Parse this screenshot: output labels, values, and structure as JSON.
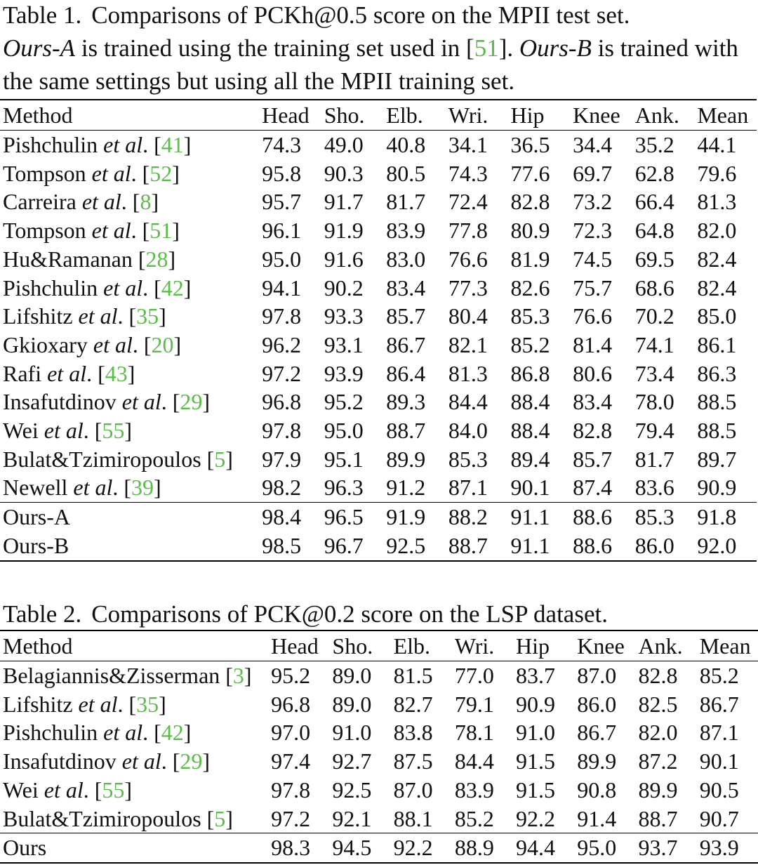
{
  "table1": {
    "caption_label": "Table 1.",
    "caption_parts": {
      "p1": "Comparisons of PCKh@0.5 score on the MPII test set.",
      "ours_a": "Ours-A",
      "p2": " is trained using the training set used in [",
      "ref": "51",
      "p3": "]. ",
      "ours_b": "Ours-B",
      "p4": " is trained with the same settings but using all the MPII training set."
    },
    "headers": [
      "Method",
      "Head",
      "Sho.",
      "Elb.",
      "Wri.",
      "Hip",
      "Knee",
      "Ank.",
      "Mean"
    ],
    "rows": [
      {
        "name": "Pishchulin",
        "etal": true,
        "ref": "41",
        "values": [
          "74.3",
          "49.0",
          "40.8",
          "34.1",
          "36.5",
          "34.4",
          "35.2",
          "44.1"
        ]
      },
      {
        "name": "Tompson",
        "etal": true,
        "ref": "52",
        "values": [
          "95.8",
          "90.3",
          "80.5",
          "74.3",
          "77.6",
          "69.7",
          "62.8",
          "79.6"
        ]
      },
      {
        "name": "Carreira",
        "etal": true,
        "ref": "8",
        "values": [
          "95.7",
          "91.7",
          "81.7",
          "72.4",
          "82.8",
          "73.2",
          "66.4",
          "81.3"
        ]
      },
      {
        "name": "Tompson",
        "etal": true,
        "ref": "51",
        "values": [
          "96.1",
          "91.9",
          "83.9",
          "77.8",
          "80.9",
          "72.3",
          "64.8",
          "82.0"
        ]
      },
      {
        "name": "Hu&Ramanan",
        "etal": false,
        "ref": "28",
        "values": [
          "95.0",
          "91.6",
          "83.0",
          "76.6",
          "81.9",
          "74.5",
          "69.5",
          "82.4"
        ]
      },
      {
        "name": "Pishchulin",
        "etal": true,
        "ref": "42",
        "values": [
          "94.1",
          "90.2",
          "83.4",
          "77.3",
          "82.6",
          "75.7",
          "68.6",
          "82.4"
        ]
      },
      {
        "name": "Lifshitz",
        "etal": true,
        "ref": "35",
        "values": [
          "97.8",
          "93.3",
          "85.7",
          "80.4",
          "85.3",
          "76.6",
          "70.2",
          "85.0"
        ]
      },
      {
        "name": "Gkioxary",
        "etal": true,
        "ref": "20",
        "values": [
          "96.2",
          "93.1",
          "86.7",
          "82.1",
          "85.2",
          "81.4",
          "74.1",
          "86.1"
        ]
      },
      {
        "name": "Rafi",
        "etal": true,
        "ref": "43",
        "values": [
          "97.2",
          "93.9",
          "86.4",
          "81.3",
          "86.8",
          "80.6",
          "73.4",
          "86.3"
        ]
      },
      {
        "name": "Insafutdinov",
        "etal": true,
        "ref": "29",
        "values": [
          "96.8",
          "95.2",
          "89.3",
          "84.4",
          "88.4",
          "83.4",
          "78.0",
          "88.5"
        ]
      },
      {
        "name": "Wei",
        "etal": true,
        "ref": "55",
        "values": [
          "97.8",
          "95.0",
          "88.7",
          "84.0",
          "88.4",
          "82.8",
          "79.4",
          "88.5"
        ]
      },
      {
        "name": "Bulat&Tzimiropoulos",
        "etal": false,
        "ref": "5",
        "values": [
          "97.9",
          "95.1",
          "89.9",
          "85.3",
          "89.4",
          "85.7",
          "81.7",
          "89.7"
        ]
      },
      {
        "name": "Newell",
        "etal": true,
        "ref": "39",
        "values": [
          "98.2",
          "96.3",
          "91.2",
          "87.1",
          "90.1",
          "87.4",
          "83.6",
          "90.9"
        ]
      }
    ],
    "ours_rows": [
      {
        "name": "Ours-A",
        "bold": false,
        "values": [
          "98.4",
          "96.5",
          "91.9",
          "88.2",
          "91.1",
          "88.6",
          "85.3",
          "91.8"
        ]
      },
      {
        "name": "Ours-B",
        "bold": true,
        "values": [
          "98.5",
          "96.7",
          "92.5",
          "88.7",
          "91.1",
          "88.6",
          "86.0",
          "92.0"
        ]
      }
    ]
  },
  "table2": {
    "caption_label": "Table 2.",
    "caption_text": "Comparisons of PCK@0.2 score on the LSP dataset.",
    "headers": [
      "Method",
      "Head",
      "Sho.",
      "Elb.",
      "Wri.",
      "Hip",
      "Knee",
      "Ank.",
      "Mean"
    ],
    "rows": [
      {
        "name": "Belagiannis&Zisserman",
        "etal": false,
        "ref": "3",
        "values": [
          "95.2",
          "89.0",
          "81.5",
          "77.0",
          "83.7",
          "87.0",
          "82.8",
          "85.2"
        ]
      },
      {
        "name": "Lifshitz",
        "etal": true,
        "ref": "35",
        "values": [
          "96.8",
          "89.0",
          "82.7",
          "79.1",
          "90.9",
          "86.0",
          "82.5",
          "86.7"
        ]
      },
      {
        "name": "Pishchulin",
        "etal": true,
        "ref": "42",
        "values": [
          "97.0",
          "91.0",
          "83.8",
          "78.1",
          "91.0",
          "86.7",
          "82.0",
          "87.1"
        ]
      },
      {
        "name": "Insafutdinov",
        "etal": true,
        "ref": "29",
        "values": [
          "97.4",
          "92.7",
          "87.5",
          "84.4",
          "91.5",
          "89.9",
          "87.2",
          "90.1"
        ]
      },
      {
        "name": "Wei",
        "etal": true,
        "ref": "55",
        "values": [
          "97.8",
          "92.5",
          "87.0",
          "83.9",
          "91.5",
          "90.8",
          "89.9",
          "90.5"
        ]
      },
      {
        "name": "Bulat&Tzimiropoulos",
        "etal": false,
        "ref": "5",
        "values": [
          "97.2",
          "92.1",
          "88.1",
          "85.2",
          "92.2",
          "91.4",
          "88.7",
          "90.7"
        ]
      }
    ],
    "ours_rows": [
      {
        "name": "Ours",
        "bold": true,
        "values": [
          "98.3",
          "94.5",
          "92.2",
          "88.9",
          "94.4",
          "95.0",
          "93.7",
          "93.9"
        ]
      }
    ]
  },
  "etal_text": "et al",
  "colors": {
    "ref_link": "#5dbb4a",
    "text": "#111111"
  }
}
